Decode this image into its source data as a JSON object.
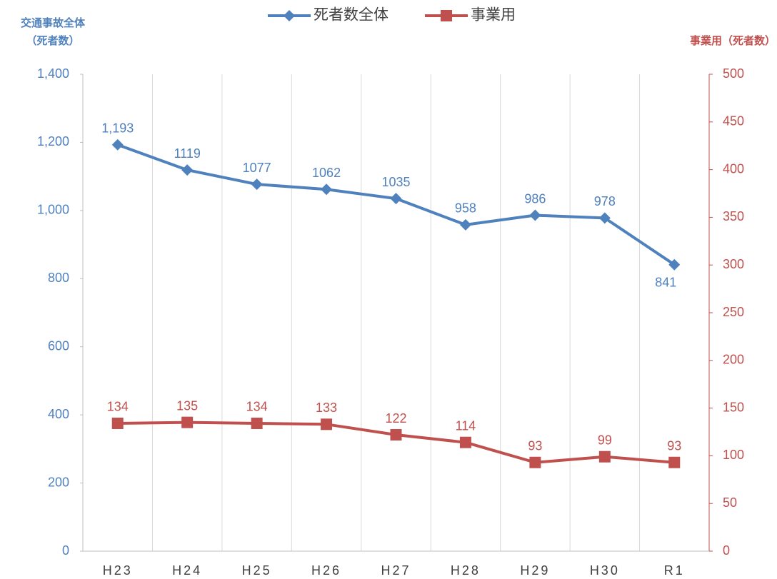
{
  "chart_data": {
    "type": "line",
    "categories": [
      "H23",
      "H24",
      "H25",
      "H26",
      "H27",
      "H28",
      "H29",
      "H30",
      "R1"
    ],
    "series": [
      {
        "name": "死者数全体",
        "color": "#4f81bd",
        "marker": "diamond",
        "axis": "y",
        "values": [
          1193,
          1119,
          1077,
          1062,
          1035,
          958,
          986,
          978,
          841
        ],
        "value_labels": [
          "1,193",
          "1119",
          "1077",
          "1062",
          "1035",
          "958",
          "986",
          "978",
          "841"
        ]
      },
      {
        "name": "事業用",
        "color": "#c0504d",
        "marker": "square",
        "axis": "y2",
        "values": [
          134,
          135,
          134,
          133,
          122,
          114,
          93,
          99,
          93
        ]
      }
    ],
    "ylabel": [
      "交通事故全体",
      "（死者数）"
    ],
    "y2label": "事業用（死者数）",
    "ylim": [
      0,
      1400
    ],
    "yticks": [
      0,
      200,
      400,
      600,
      800,
      {
        "value": 1000,
        "label": "1,000"
      },
      {
        "value": 1200,
        "label": "1,200"
      },
      {
        "value": 1400,
        "label": "1,400"
      }
    ],
    "y2lim": [
      0,
      500
    ],
    "y2ticks": [
      0,
      50,
      100,
      150,
      200,
      250,
      300,
      350,
      400,
      450,
      500
    ],
    "grid": "x",
    "legend": "top"
  }
}
